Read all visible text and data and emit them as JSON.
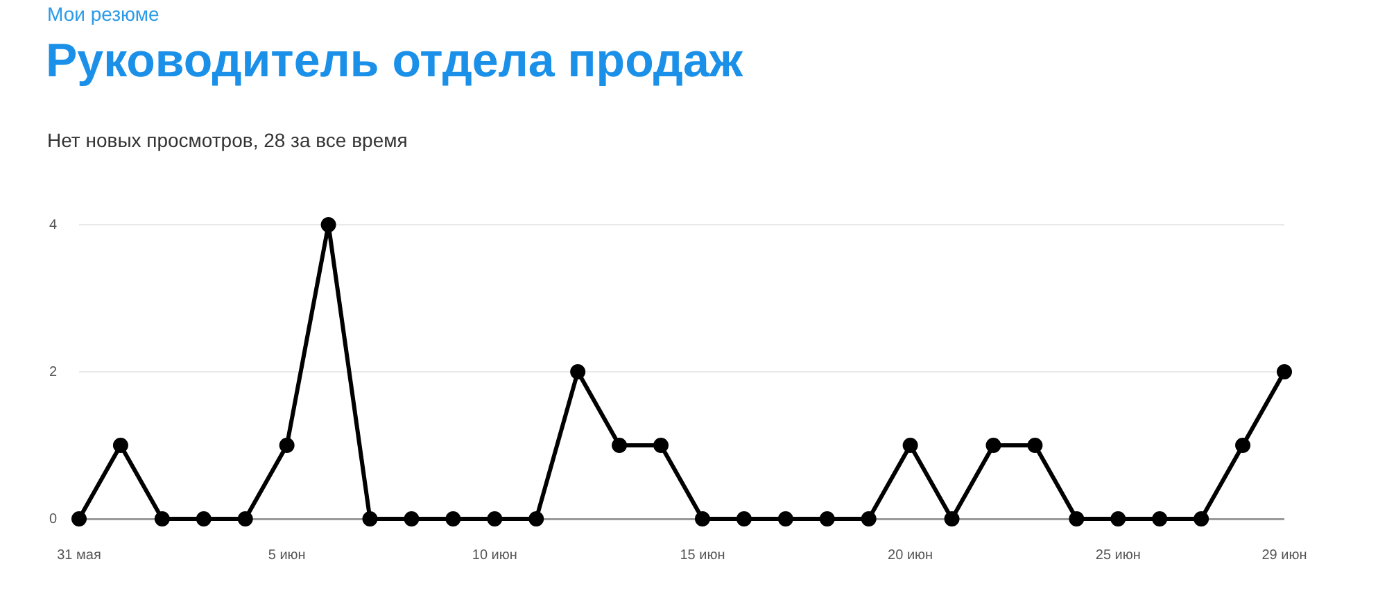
{
  "chart_data": {
    "type": "line",
    "title": "Руководитель отдела продаж",
    "subtitle": "Нет новых просмотров, 28 за все время",
    "annotations": [
      "Мои резюме"
    ],
    "categories": [
      "31 мая",
      null,
      null,
      null,
      null,
      "5 июн",
      null,
      null,
      null,
      null,
      "10 июн",
      null,
      null,
      null,
      null,
      "15 июн",
      null,
      null,
      null,
      null,
      "20 июн",
      null,
      null,
      null,
      null,
      "25 июн",
      null,
      null,
      null,
      "29 июн"
    ],
    "series": [
      {
        "color": "#000000",
        "values": [
          0,
          1,
          0,
          0,
          0,
          1,
          4,
          0,
          0,
          0,
          0,
          0,
          2,
          1,
          1,
          0,
          0,
          0,
          0,
          0,
          1,
          0,
          1,
          1,
          0,
          0,
          0,
          0,
          1,
          2
        ]
      }
    ],
    "ylim": [
      0,
      4
    ],
    "yticks": [
      0,
      2,
      4
    ],
    "grid": "y",
    "marker": "circle",
    "line_style": "solid"
  }
}
